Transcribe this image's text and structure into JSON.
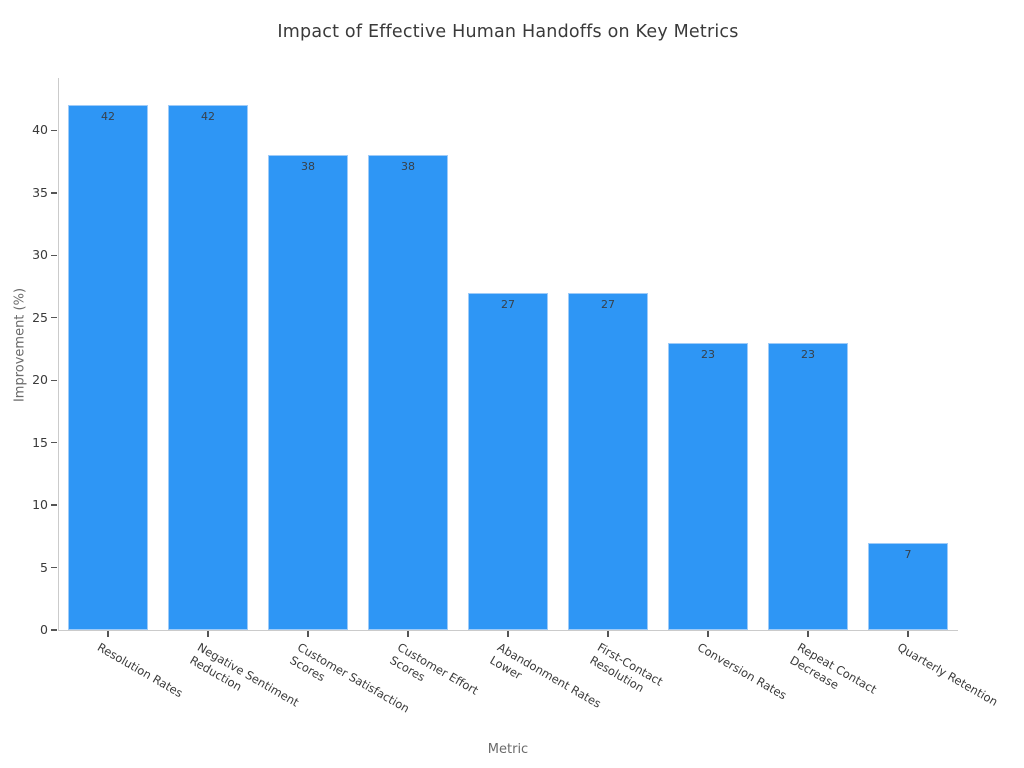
{
  "chart_data": {
    "type": "bar",
    "title": "Impact of Effective Human Handoffs on Key Metrics",
    "xlabel": "Metric",
    "ylabel": "Improvement (%)",
    "categories": [
      "Resolution Rates",
      "Negative Sentiment\nReduction",
      "Customer Satisfaction\nScores",
      "Customer Effort\nScores",
      "Abandonment Rates\nLower",
      "First-Contact\nResolution",
      "Conversion Rates",
      "Repeat Contact\nDecrease",
      "Quarterly Retention"
    ],
    "values": [
      42,
      42,
      38,
      38,
      27,
      27,
      23,
      23,
      7
    ],
    "value_labels": [
      "42",
      "42",
      "38",
      "38",
      "27",
      "27",
      "23",
      "23",
      "7"
    ],
    "yticks": [
      0,
      5,
      10,
      15,
      20,
      25,
      30,
      35,
      40
    ],
    "ylim": [
      0,
      44.2
    ],
    "grid": false,
    "legend": "none",
    "xtick_rotation_deg": 30,
    "colors": {
      "bar_fill": "#2E96F5",
      "bar_edge": "#9ECBF8",
      "title_text": "#3A3A3A",
      "axis_title_text": "#6B6B6B",
      "tick_text": "#3A3A3A",
      "value_label_text": "#37404A",
      "spine": "#CBCBCB",
      "tick_mark": "#555555",
      "background": "#FFFFFF"
    }
  }
}
